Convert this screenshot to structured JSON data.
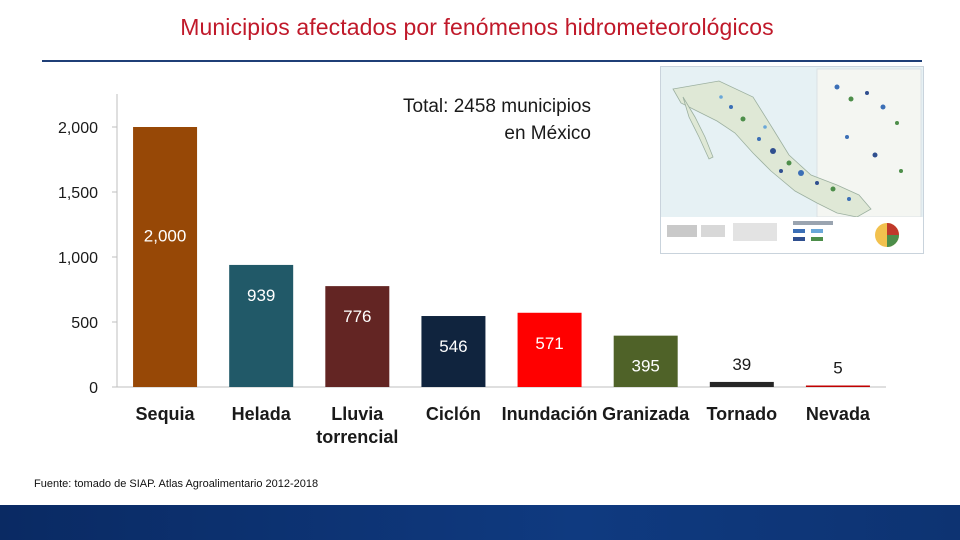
{
  "page": {
    "title": "Municipios afectados por fenómenos hidrometeorológicos",
    "total_line1": "Total: 2458 municipios",
    "total_line2": "en México",
    "source": "Fuente: tomado de SIAP. Atlas Agroalimentario 2012-2018"
  },
  "colors": {
    "title": "#c0192a",
    "rule": "#1f3f77",
    "footer": "#0c2f6e"
  },
  "chart_data": {
    "type": "bar",
    "title": "",
    "xlabel": "",
    "ylabel": "",
    "ylim": [
      0,
      2000
    ],
    "yticks": [
      0,
      500,
      1000,
      1500,
      2000
    ],
    "ytick_labels": [
      "0",
      "500",
      "1,000",
      "1,500",
      "2,000"
    ],
    "categories": [
      "Sequia",
      "Helada",
      "Lluvia\ntorrencial",
      "Ciclón",
      "Inundación",
      "Granizada",
      "Tornado",
      "Nevada"
    ],
    "values": [
      2000,
      939,
      776,
      546,
      571,
      395,
      39,
      5
    ],
    "data_labels": [
      "2,000",
      "939",
      "776",
      "546",
      "571",
      "395",
      "39",
      "5"
    ],
    "bar_colors": [
      "#974806",
      "#215968",
      "#632523",
      "#10243e",
      "#ff0000",
      "#4f6228",
      "#262626",
      "#c00000"
    ],
    "label_colors": [
      "#ffffff",
      "#ffffff",
      "#ffffff",
      "#ffffff",
      "#ffffff",
      "#ffffff",
      "#1a1a1a",
      "#1a1a1a"
    ],
    "label_position": [
      "inside-mid",
      "inside",
      "inside",
      "inside",
      "inside",
      "inside",
      "above",
      "above"
    ]
  }
}
